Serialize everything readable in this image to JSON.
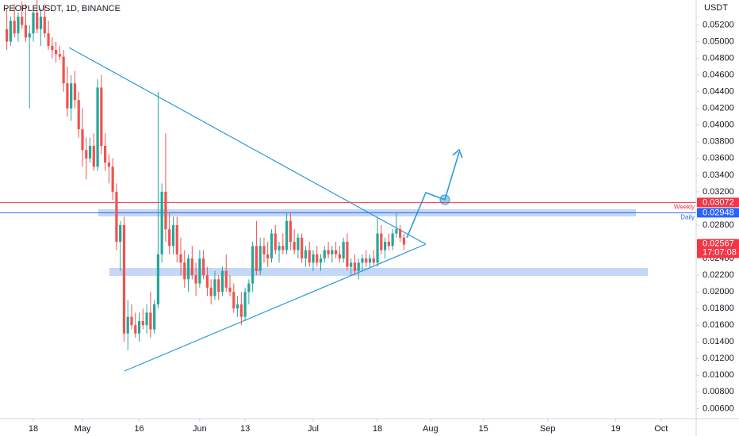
{
  "chart_data": {
    "type": "candlestick",
    "title": "PEOPLEUSDT, 1D, BINANCE",
    "y_axis_label": "USDT",
    "up_color": "#26a69a",
    "down_color": "#ef5350",
    "grid": false,
    "ylim": [
      0.0048,
      0.055
    ],
    "yticks": [
      {
        "value": 0.052,
        "label": "0.05200"
      },
      {
        "value": 0.05,
        "label": "0.05000"
      },
      {
        "value": 0.048,
        "label": "0.04800"
      },
      {
        "value": 0.046,
        "label": "0.04600"
      },
      {
        "value": 0.044,
        "label": "0.04400"
      },
      {
        "value": 0.042,
        "label": "0.04200"
      },
      {
        "value": 0.04,
        "label": "0.04000"
      },
      {
        "value": 0.038,
        "label": "0.03800"
      },
      {
        "value": 0.036,
        "label": "0.03600"
      },
      {
        "value": 0.034,
        "label": "0.03400"
      },
      {
        "value": 0.032,
        "label": "0.03200"
      },
      {
        "value": 0.028,
        "label": "0.02800"
      },
      {
        "value": 0.024,
        "label": "0.02400"
      },
      {
        "value": 0.022,
        "label": "0.02200"
      },
      {
        "value": 0.02,
        "label": "0.02000"
      },
      {
        "value": 0.018,
        "label": "0.01800"
      },
      {
        "value": 0.016,
        "label": "0.01600"
      },
      {
        "value": 0.014,
        "label": "0.01400"
      },
      {
        "value": 0.012,
        "label": "0.01200"
      },
      {
        "value": 0.01,
        "label": "0.01000"
      },
      {
        "value": 0.008,
        "label": "0.00800"
      },
      {
        "value": 0.006,
        "label": "0.00600"
      }
    ],
    "xticks": [
      {
        "value": "04-18",
        "label": "18"
      },
      {
        "value": "05-01",
        "label": "May"
      },
      {
        "value": "05-16",
        "label": "16"
      },
      {
        "value": "06-01",
        "label": "Jun"
      },
      {
        "value": "06-13",
        "label": "13"
      },
      {
        "value": "07-01",
        "label": "Jul"
      },
      {
        "value": "07-18",
        "label": "18"
      },
      {
        "value": "08-01",
        "label": "Aug"
      },
      {
        "value": "08-15",
        "label": "15"
      },
      {
        "value": "09-01",
        "label": "Sep"
      },
      {
        "value": "09-19",
        "label": "19"
      },
      {
        "value": "10-01",
        "label": "Oct"
      }
    ],
    "levels": [
      {
        "name": "Weekly",
        "value": 0.03072,
        "color": "#f23645"
      },
      {
        "name": "Daily",
        "value": 0.02948,
        "color": "#2962ff"
      }
    ],
    "last_price": {
      "value": 0.02567,
      "countdown": "17:07:08",
      "color": "#f23645"
    },
    "x": [
      "04-11",
      "04-12",
      "04-13",
      "04-14",
      "04-15",
      "04-16",
      "04-17",
      "04-18",
      "04-19",
      "04-20",
      "04-21",
      "04-22",
      "04-23",
      "04-24",
      "04-25",
      "04-26",
      "04-27",
      "04-28",
      "04-29",
      "04-30",
      "05-01",
      "05-02",
      "05-03",
      "05-04",
      "05-05",
      "05-06",
      "05-07",
      "05-08",
      "05-09",
      "05-10",
      "05-11",
      "05-12",
      "05-13",
      "05-14",
      "05-15",
      "05-16",
      "05-17",
      "05-18",
      "05-19",
      "05-20",
      "05-21",
      "05-22",
      "05-23",
      "05-24",
      "05-25",
      "05-26",
      "05-27",
      "05-28",
      "05-29",
      "05-30",
      "05-31",
      "06-01",
      "06-02",
      "06-03",
      "06-04",
      "06-05",
      "06-06",
      "06-07",
      "06-08",
      "06-09",
      "06-10",
      "06-11",
      "06-12",
      "06-13",
      "06-14",
      "06-15",
      "06-16",
      "06-17",
      "06-18",
      "06-19",
      "06-20",
      "06-21",
      "06-22",
      "06-23",
      "06-24",
      "06-25",
      "06-26",
      "06-27",
      "06-28",
      "06-29",
      "06-30",
      "07-01",
      "07-02",
      "07-03",
      "07-04",
      "07-05",
      "07-06",
      "07-07",
      "07-08",
      "07-09",
      "07-10",
      "07-11",
      "07-12",
      "07-13",
      "07-14",
      "07-15",
      "07-16",
      "07-17",
      "07-18",
      "07-19",
      "07-20",
      "07-21",
      "07-22",
      "07-23",
      "07-24",
      "07-25"
    ],
    "open": [
      0.0515,
      0.05,
      0.0525,
      0.051,
      0.053,
      0.052,
      0.0505,
      0.051,
      0.0535,
      0.0515,
      0.053,
      0.051,
      0.0495,
      0.049,
      0.0485,
      0.0482,
      0.045,
      0.042,
      0.045,
      0.043,
      0.0395,
      0.037,
      0.036,
      0.0375,
      0.035,
      0.0445,
      0.0375,
      0.0355,
      0.035,
      0.032,
      0.026,
      0.028,
      0.015,
      0.017,
      0.016,
      0.015,
      0.0165,
      0.016,
      0.0175,
      0.0155,
      0.0185,
      0.0245,
      0.032,
      0.0275,
      0.0255,
      0.028,
      0.0245,
      0.0235,
      0.0215,
      0.024,
      0.022,
      0.021,
      0.024,
      0.022,
      0.0205,
      0.0195,
      0.0215,
      0.02,
      0.0225,
      0.0205,
      0.02,
      0.018,
      0.0185,
      0.017,
      0.02,
      0.021,
      0.0255,
      0.0225,
      0.0255,
      0.0245,
      0.024,
      0.027,
      0.025,
      0.0255,
      0.025,
      0.0285,
      0.026,
      0.025,
      0.0265,
      0.024,
      0.025,
      0.0235,
      0.0245,
      0.0235,
      0.024,
      0.025,
      0.0245,
      0.025,
      0.0245,
      0.024,
      0.026,
      0.023,
      0.0235,
      0.0225,
      0.0235,
      0.024,
      0.0235,
      0.024,
      0.0235,
      0.027,
      0.025,
      0.026,
      0.0255,
      0.027,
      0.0275,
      0.0265
    ],
    "high": [
      0.054,
      0.053,
      0.0545,
      0.0535,
      0.0548,
      0.0545,
      0.052,
      0.054,
      0.055,
      0.054,
      0.0545,
      0.0525,
      0.0505,
      0.05,
      0.0495,
      0.049,
      0.047,
      0.046,
      0.0465,
      0.044,
      0.042,
      0.0385,
      0.0385,
      0.039,
      0.0455,
      0.046,
      0.039,
      0.0365,
      0.036,
      0.033,
      0.0285,
      0.029,
      0.019,
      0.0185,
      0.0175,
      0.0175,
      0.018,
      0.0185,
      0.02,
      0.019,
      0.044,
      0.033,
      0.039,
      0.0295,
      0.029,
      0.029,
      0.0265,
      0.025,
      0.0245,
      0.0255,
      0.0235,
      0.025,
      0.025,
      0.023,
      0.0215,
      0.0225,
      0.022,
      0.023,
      0.0245,
      0.022,
      0.021,
      0.0195,
      0.02,
      0.0205,
      0.0215,
      0.026,
      0.0285,
      0.0265,
      0.0265,
      0.026,
      0.0275,
      0.028,
      0.026,
      0.027,
      0.0295,
      0.0295,
      0.0275,
      0.027,
      0.027,
      0.0255,
      0.026,
      0.025,
      0.0255,
      0.0245,
      0.0255,
      0.026,
      0.0255,
      0.026,
      0.0255,
      0.0265,
      0.027,
      0.024,
      0.0245,
      0.024,
      0.0245,
      0.025,
      0.0245,
      0.025,
      0.029,
      0.028,
      0.0265,
      0.027,
      0.0275,
      0.0295,
      0.028,
      0.027
    ],
    "low": [
      0.049,
      0.0495,
      0.0505,
      0.05,
      0.0515,
      0.05,
      0.042,
      0.05,
      0.051,
      0.0495,
      0.0505,
      0.049,
      0.048,
      0.0475,
      0.0478,
      0.044,
      0.041,
      0.0405,
      0.042,
      0.0385,
      0.035,
      0.0335,
      0.0355,
      0.0345,
      0.0345,
      0.0365,
      0.0345,
      0.033,
      0.031,
      0.025,
      0.0225,
      0.014,
      0.013,
      0.0155,
      0.0145,
      0.014,
      0.0155,
      0.015,
      0.0145,
      0.015,
      0.018,
      0.0235,
      0.026,
      0.0245,
      0.0245,
      0.0235,
      0.022,
      0.0205,
      0.02,
      0.0215,
      0.0195,
      0.0205,
      0.0215,
      0.0195,
      0.0185,
      0.019,
      0.019,
      0.0195,
      0.02,
      0.0195,
      0.0175,
      0.017,
      0.016,
      0.0165,
      0.0185,
      0.02,
      0.022,
      0.022,
      0.0235,
      0.023,
      0.0235,
      0.0245,
      0.0235,
      0.0245,
      0.0245,
      0.025,
      0.0245,
      0.024,
      0.0235,
      0.023,
      0.023,
      0.0225,
      0.023,
      0.0225,
      0.0235,
      0.024,
      0.0235,
      0.024,
      0.0235,
      0.0235,
      0.0225,
      0.022,
      0.022,
      0.0215,
      0.0225,
      0.023,
      0.0228,
      0.0232,
      0.023,
      0.0245,
      0.024,
      0.025,
      0.025,
      0.0265,
      0.026,
      0.025
    ],
    "close": [
      0.05,
      0.0525,
      0.051,
      0.053,
      0.052,
      0.0505,
      0.051,
      0.0535,
      0.0515,
      0.053,
      0.051,
      0.0495,
      0.049,
      0.0485,
      0.0482,
      0.045,
      0.042,
      0.045,
      0.043,
      0.0395,
      0.037,
      0.036,
      0.0375,
      0.035,
      0.0445,
      0.0375,
      0.0355,
      0.035,
      0.032,
      0.026,
      0.028,
      0.015,
      0.017,
      0.016,
      0.015,
      0.0165,
      0.016,
      0.0175,
      0.0155,
      0.0185,
      0.0245,
      0.032,
      0.0275,
      0.0255,
      0.028,
      0.0245,
      0.0235,
      0.0215,
      0.024,
      0.022,
      0.021,
      0.024,
      0.022,
      0.0205,
      0.0195,
      0.0215,
      0.02,
      0.0225,
      0.0205,
      0.02,
      0.018,
      0.0185,
      0.017,
      0.02,
      0.021,
      0.0255,
      0.0225,
      0.0255,
      0.0245,
      0.024,
      0.027,
      0.025,
      0.0255,
      0.025,
      0.0285,
      0.026,
      0.025,
      0.0265,
      0.024,
      0.025,
      0.0235,
      0.0245,
      0.0235,
      0.024,
      0.025,
      0.0245,
      0.025,
      0.0245,
      0.024,
      0.026,
      0.023,
      0.0235,
      0.0225,
      0.0235,
      0.024,
      0.0235,
      0.024,
      0.0235,
      0.027,
      0.025,
      0.026,
      0.0255,
      0.027,
      0.0275,
      0.0265,
      0.02567
    ]
  }
}
